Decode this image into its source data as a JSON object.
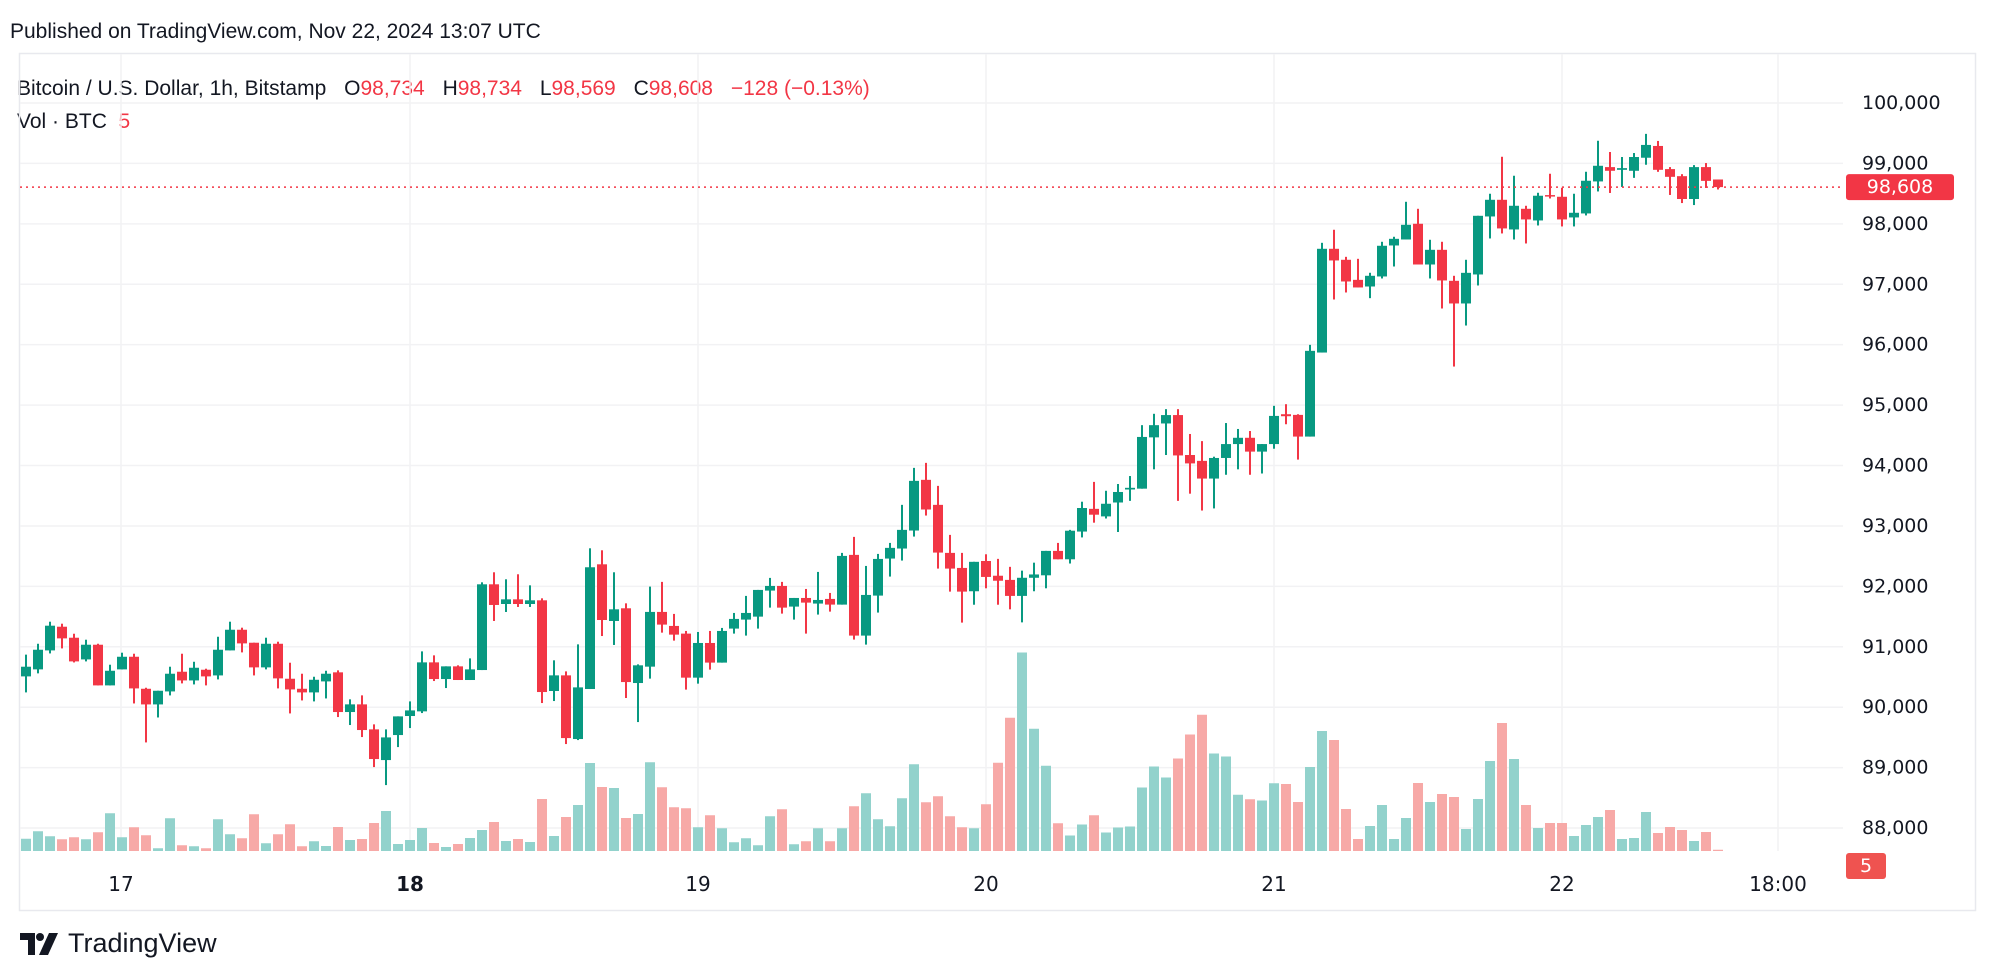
{
  "header": {
    "published": "Published on TradingView.com, Nov 22, 2024 13:07 UTC"
  },
  "legend": {
    "symbol": "Bitcoin / U.S. Dollar, 1h, Bitstamp",
    "open_label": "O",
    "open": "98,734",
    "high_label": "H",
    "high": "98,734",
    "low_label": "L",
    "low": "98,569",
    "close_label": "C",
    "close": "98,608",
    "change": "−128 (−0.13%)",
    "volume_label": "Vol · BTC",
    "volume": "5"
  },
  "footer": {
    "brand": "TradingView"
  },
  "colors": {
    "up": "#089981",
    "down": "#F23645",
    "volume_up": "#92D2CC",
    "volume_down": "#F7A9A7",
    "grid": "#F2F2F4",
    "text": "#131722",
    "volume_label_bg": "#EF5350"
  },
  "chart_data": {
    "type": "candlestick",
    "interval": "1h",
    "grid": true,
    "price_axis": {
      "position": "right",
      "ylim": [
        87700,
        100400
      ],
      "ticks": [
        "100,000",
        "99,000",
        "98,000",
        "97,000",
        "96,000",
        "95,000",
        "94,000",
        "93,000",
        "92,000",
        "91,000",
        "90,000",
        "89,000",
        "88,000"
      ],
      "tick_values": [
        100000,
        99000,
        98000,
        97000,
        96000,
        95000,
        94000,
        93000,
        92000,
        91000,
        90000,
        89000,
        88000
      ]
    },
    "time_axis": {
      "ticks": [
        {
          "label": "17",
          "bold": false
        },
        {
          "label": "18",
          "bold": true
        },
        {
          "label": "19",
          "bold": false
        },
        {
          "label": "20",
          "bold": false
        },
        {
          "label": "21",
          "bold": false
        },
        {
          "label": "22",
          "bold": false
        },
        {
          "label": "18:00",
          "bold": false
        }
      ]
    },
    "last_price": {
      "value": 98608,
      "label": "98,608"
    },
    "last_volume": {
      "value": 5,
      "label": "5"
    },
    "candle_fields": [
      "open",
      "high",
      "low",
      "close",
      "volume"
    ],
    "candles": [
      [
        90510,
        90870,
        90245,
        90670,
        49
      ],
      [
        90626,
        91050,
        90560,
        90951,
        79
      ],
      [
        90940,
        91415,
        90890,
        91349,
        59
      ],
      [
        91332,
        91382,
        90973,
        91139,
        47
      ],
      [
        91150,
        91216,
        90741,
        90758,
        55
      ],
      [
        90791,
        91117,
        90758,
        91034,
        47
      ],
      [
        91034,
        91050,
        90361,
        90361,
        75
      ],
      [
        90361,
        90703,
        90361,
        90603,
        151
      ],
      [
        90626,
        90902,
        90626,
        90835,
        55
      ],
      [
        90835,
        90885,
        90062,
        90311,
        95
      ],
      [
        90305,
        90322,
        89417,
        90046,
        63
      ],
      [
        90046,
        90272,
        89830,
        90272,
        11
      ],
      [
        90261,
        90670,
        90195,
        90554,
        131
      ],
      [
        90587,
        90885,
        90394,
        90443,
        23
      ],
      [
        90443,
        90752,
        90377,
        90653,
        19
      ],
      [
        90620,
        90637,
        90361,
        90510,
        11
      ],
      [
        90526,
        91166,
        90460,
        90951,
        127
      ],
      [
        90940,
        91415,
        90940,
        91282,
        67
      ],
      [
        91282,
        91316,
        90907,
        91056,
        51
      ],
      [
        91067,
        91067,
        90526,
        90659,
        147
      ],
      [
        90659,
        91150,
        90626,
        91050,
        31
      ],
      [
        91050,
        91084,
        90311,
        90477,
        67
      ],
      [
        90471,
        90736,
        89897,
        90294,
        107
      ],
      [
        90305,
        90554,
        90112,
        90245,
        19
      ],
      [
        90245,
        90504,
        90096,
        90454,
        39
      ],
      [
        90427,
        90603,
        90145,
        90554,
        20
      ],
      [
        90577,
        90610,
        89837,
        89920,
        96
      ],
      [
        89920,
        90130,
        89705,
        90047,
        44
      ],
      [
        90047,
        90196,
        89506,
        89622,
        48
      ],
      [
        89633,
        89716,
        89009,
        89142,
        112
      ],
      [
        89125,
        89633,
        88711,
        89500,
        160
      ],
      [
        89539,
        89848,
        89340,
        89848,
        28
      ],
      [
        89854,
        90096,
        89655,
        89947,
        44
      ],
      [
        89931,
        90924,
        89903,
        90742,
        92
      ],
      [
        90742,
        90858,
        90433,
        90466,
        32
      ],
      [
        90466,
        90676,
        90317,
        90676,
        16
      ],
      [
        90676,
        90693,
        90450,
        90450,
        28
      ],
      [
        90450,
        90808,
        90450,
        90626,
        52
      ],
      [
        90615,
        92067,
        90615,
        92034,
        84
      ],
      [
        92034,
        92233,
        91427,
        91692,
        116
      ],
      [
        91708,
        92117,
        91576,
        91785,
        40
      ],
      [
        91785,
        92200,
        91659,
        91708,
        48
      ],
      [
        91708,
        92017,
        91659,
        91769,
        36
      ],
      [
        91769,
        91802,
        90069,
        90251,
        208
      ],
      [
        90268,
        90776,
        90102,
        90527,
        60
      ],
      [
        90527,
        90593,
        89390,
        89489,
        136
      ],
      [
        89473,
        91040,
        89456,
        90328,
        184
      ],
      [
        90301,
        92630,
        90301,
        92316,
        352
      ],
      [
        92365,
        92597,
        91178,
        91443,
        256
      ],
      [
        91427,
        92233,
        91030,
        91620,
        252
      ],
      [
        91637,
        91719,
        90152,
        90416,
        132
      ],
      [
        90400,
        90709,
        89754,
        90693,
        148
      ],
      [
        90671,
        91996,
        90473,
        91577,
        355
      ],
      [
        91577,
        92074,
        91234,
        91367,
        255
      ],
      [
        91345,
        91544,
        91102,
        91201,
        175
      ],
      [
        91218,
        91262,
        90291,
        90489,
        171
      ],
      [
        90489,
        91245,
        90390,
        91063,
        95
      ],
      [
        91063,
        91262,
        90622,
        90738,
        143
      ],
      [
        90738,
        91312,
        90738,
        91262,
        91
      ],
      [
        91301,
        91560,
        91218,
        91461,
        35
      ],
      [
        91450,
        91842,
        91185,
        91560,
        51
      ],
      [
        91499,
        91941,
        91301,
        91941,
        23
      ],
      [
        91930,
        92140,
        91648,
        92007,
        139
      ],
      [
        92007,
        92074,
        91549,
        91648,
        167
      ],
      [
        91665,
        91808,
        91450,
        91808,
        27
      ],
      [
        91808,
        91957,
        91218,
        91731,
        39
      ],
      [
        91715,
        92239,
        91533,
        91775,
        91
      ],
      [
        91792,
        91891,
        91582,
        91698,
        39
      ],
      [
        91698,
        92554,
        91698,
        92504,
        91
      ],
      [
        92521,
        92819,
        91119,
        91185,
        179
      ],
      [
        91185,
        92338,
        91036,
        91858,
        231
      ],
      [
        91847,
        92537,
        91566,
        92454,
        127
      ],
      [
        92460,
        92719,
        92162,
        92637,
        99
      ],
      [
        92626,
        93349,
        92427,
        92935,
        211
      ],
      [
        92924,
        93961,
        92824,
        93746,
        347
      ],
      [
        93763,
        94044,
        93172,
        93272,
        195
      ],
      [
        93349,
        93663,
        92294,
        92559,
        219
      ],
      [
        92554,
        92852,
        91913,
        92294,
        139
      ],
      [
        92305,
        92554,
        91400,
        91913,
        95
      ],
      [
        91919,
        92406,
        91696,
        92406,
        91
      ],
      [
        92420,
        92531,
        91968,
        92156,
        187
      ],
      [
        92176,
        92455,
        91696,
        92093,
        353
      ],
      [
        92107,
        92323,
        91620,
        91842,
        533
      ],
      [
        91842,
        92260,
        91404,
        92142,
        794
      ],
      [
        92142,
        92392,
        91919,
        92197,
        489
      ],
      [
        92183,
        92587,
        91968,
        92587,
        341
      ],
      [
        92587,
        92719,
        92448,
        92448,
        111
      ],
      [
        92448,
        92935,
        92378,
        92921,
        62
      ],
      [
        92907,
        93401,
        92810,
        93297,
        106
      ],
      [
        93283,
        93729,
        93054,
        93186,
        143
      ],
      [
        93158,
        93582,
        93123,
        93367,
        74
      ],
      [
        93388,
        93694,
        92900,
        93562,
        94
      ],
      [
        93603,
        93826,
        93415,
        93631,
        98
      ],
      [
        93617,
        94668,
        93617,
        94473,
        254
      ],
      [
        94466,
        94856,
        93937,
        94668,
        338
      ],
      [
        94696,
        94933,
        94174,
        94835,
        294
      ],
      [
        94835,
        94933,
        93415,
        94167,
        370
      ],
      [
        94174,
        94522,
        93534,
        94035,
        466
      ],
      [
        94077,
        94404,
        93255,
        93784,
        545
      ],
      [
        93784,
        94146,
        93290,
        94125,
        390
      ],
      [
        94125,
        94703,
        93847,
        94355,
        378
      ],
      [
        94355,
        94605,
        93937,
        94459,
        225
      ],
      [
        94459,
        94571,
        93847,
        94230,
        207
      ],
      [
        94230,
        94355,
        93868,
        94355,
        202
      ],
      [
        94355,
        94988,
        94278,
        94821,
        271
      ],
      [
        94849,
        95015,
        94683,
        94816,
        268
      ],
      [
        94838,
        94849,
        94098,
        94479,
        196
      ],
      [
        94479,
        95997,
        94479,
        95898,
        336
      ],
      [
        95870,
        97686,
        95870,
        97587,
        480
      ],
      [
        97587,
        97902,
        96748,
        97394,
        444
      ],
      [
        97405,
        97454,
        96864,
        97046,
        168
      ],
      [
        97073,
        97421,
        96947,
        96947,
        48
      ],
      [
        96963,
        97190,
        96770,
        97140,
        100
      ],
      [
        97129,
        97703,
        97096,
        97637,
        184
      ],
      [
        97642,
        97786,
        97294,
        97752,
        48
      ],
      [
        97741,
        98365,
        97741,
        97984,
        132
      ],
      [
        98001,
        98249,
        97327,
        97327,
        272
      ],
      [
        97327,
        97736,
        97096,
        97570,
        196
      ],
      [
        97570,
        97703,
        96599,
        97063,
        228
      ],
      [
        97057,
        97140,
        95638,
        96682,
        216
      ],
      [
        96682,
        97405,
        96317,
        97189,
        88
      ],
      [
        97162,
        98133,
        96980,
        98133,
        208
      ],
      [
        98122,
        98498,
        97758,
        98398,
        360
      ],
      [
        98398,
        99110,
        97841,
        97924,
        512
      ],
      [
        97907,
        98796,
        97741,
        98299,
        368
      ],
      [
        98249,
        98299,
        97675,
        98073,
        184
      ],
      [
        98056,
        98514,
        97973,
        98465,
        92
      ],
      [
        98476,
        98829,
        98420,
        98454,
        112
      ],
      [
        98448,
        98597,
        97957,
        98073,
        112
      ],
      [
        98106,
        98498,
        97957,
        98183,
        60
      ],
      [
        98172,
        98862,
        98139,
        98713,
        104
      ],
      [
        98702,
        99375,
        98536,
        98961,
        136
      ],
      [
        98939,
        99189,
        98511,
        98878,
        164
      ],
      [
        98894,
        99106,
        98611,
        98922,
        48
      ],
      [
        98878,
        99172,
        98761,
        99106,
        52
      ],
      [
        99094,
        99489,
        98978,
        99306,
        156
      ],
      [
        99289,
        99372,
        98861,
        98894,
        72
      ],
      [
        98906,
        98939,
        98478,
        98778,
        96
      ],
      [
        98789,
        98822,
        98344,
        98411,
        84
      ],
      [
        98411,
        98972,
        98311,
        98939,
        40
      ],
      [
        98939,
        99006,
        98594,
        98711,
        76
      ],
      [
        98734,
        98734,
        98569,
        98608,
        5
      ]
    ]
  }
}
